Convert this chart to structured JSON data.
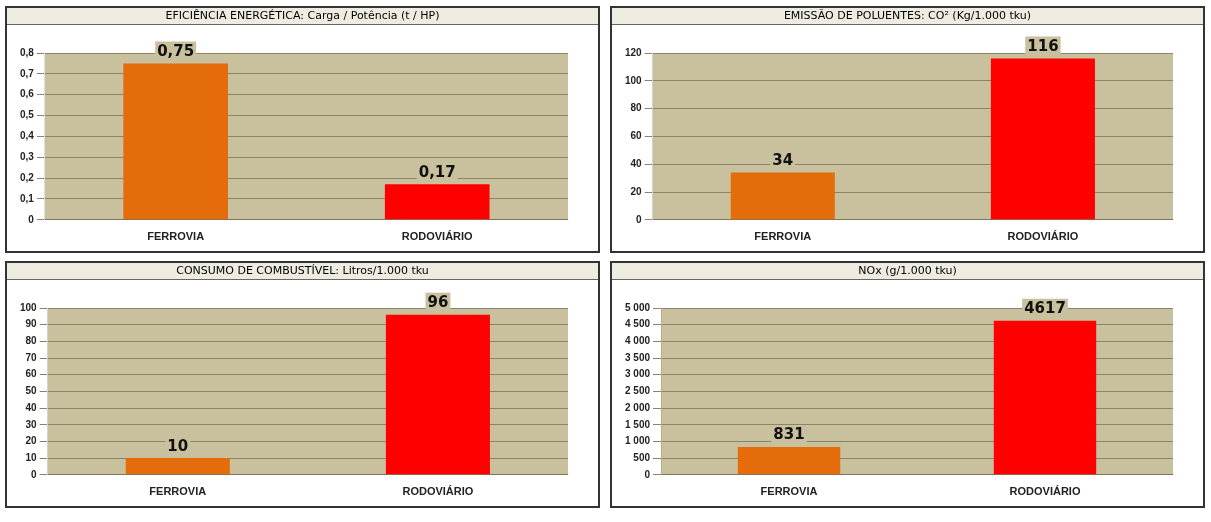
{
  "chart_data": [
    {
      "type": "bar",
      "title": "EFICIÊNCIA ENERGÉTICA: Carga / Potência (t / HP)",
      "categories": [
        "FERROVIA",
        "RODOVIÁRIO"
      ],
      "values": [
        0.75,
        0.17
      ],
      "value_labels": [
        "0,75",
        "0,17"
      ],
      "colors": [
        "#e46c0a",
        "#ff0000"
      ],
      "ylim": [
        0,
        0.8
      ],
      "yticks": [
        {
          "value": 0,
          "label": "0"
        },
        {
          "value": 0.1,
          "label": "0,1"
        },
        {
          "value": 0.2,
          "label": "0,2"
        },
        {
          "value": 0.3,
          "label": "0,3"
        },
        {
          "value": 0.4,
          "label": "0,4"
        },
        {
          "value": 0.5,
          "label": "0,5"
        },
        {
          "value": 0.6,
          "label": "0,6"
        },
        {
          "value": 0.7,
          "label": "0,7"
        },
        {
          "value": 0.8,
          "label": "0,8"
        }
      ],
      "grid": "y"
    },
    {
      "type": "bar",
      "title": "EMISSÃO DE POLUENTES: CO² (Kg/1.000 tku)",
      "categories": [
        "FERROVIA",
        "RODOVIÁRIO"
      ],
      "values": [
        34,
        116
      ],
      "data_labels": true,
      "colors": [
        "#e46c0a",
        "#ff0000"
      ],
      "ylim": [
        0,
        120
      ],
      "yticks": [
        0,
        20,
        40,
        60,
        80,
        100,
        120
      ],
      "grid": "y"
    },
    {
      "type": "bar",
      "title": "CONSUMO DE COMBUSTÍVEL: Litros/1.000 tku",
      "categories": [
        "FERROVIA",
        "RODOVIÁRIO"
      ],
      "values": [
        10,
        96
      ],
      "data_labels": true,
      "colors": [
        "#e46c0a",
        "#ff0000"
      ],
      "ylim": [
        0,
        100
      ],
      "yticks": [
        0,
        10,
        20,
        30,
        40,
        50,
        60,
        70,
        80,
        90,
        100
      ],
      "grid": "y"
    },
    {
      "type": "bar",
      "title": "NOx (g/1.000 tku)",
      "categories": [
        "FERROVIA",
        "RODOVIÁRIO"
      ],
      "values": [
        831,
        4617
      ],
      "data_labels": true,
      "colors": [
        "#e46c0a",
        "#ff0000"
      ],
      "ylim": [
        0,
        5000
      ],
      "yticks": [
        0,
        {
          "value": 500,
          "label": "500"
        },
        {
          "value": 1000,
          "label": "1 000"
        },
        {
          "value": 1500,
          "label": "1 500"
        },
        {
          "value": 2000,
          "label": "2 000"
        },
        {
          "value": 2500,
          "label": "2 500"
        },
        {
          "value": 3000,
          "label": "3 000"
        },
        {
          "value": 3500,
          "label": "3 500"
        },
        {
          "value": 4000,
          "label": "4 000"
        },
        {
          "value": 4500,
          "label": "4 500"
        },
        {
          "value": 5000,
          "label": "5 000"
        }
      ],
      "grid": "y"
    }
  ]
}
